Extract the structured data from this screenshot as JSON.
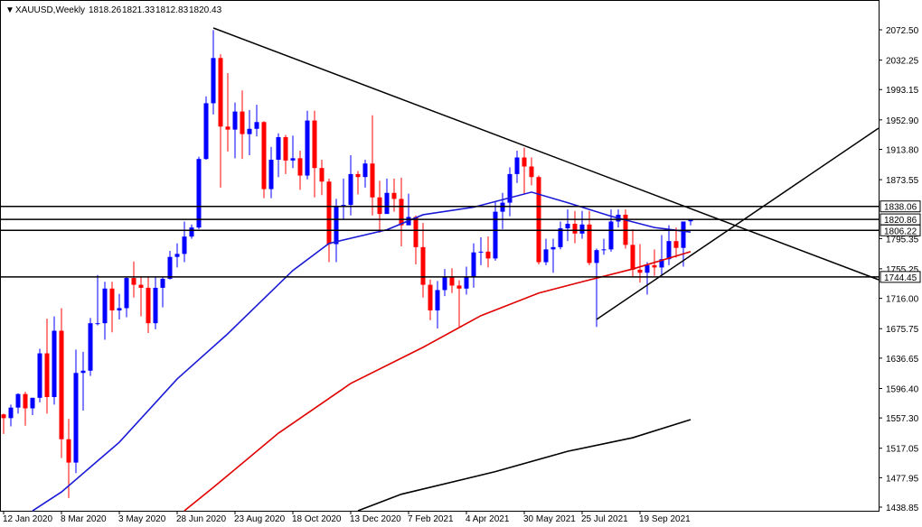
{
  "chart_data": {
    "type": "candlestick",
    "title": "XAUUSD,Weekly",
    "quote": [
      "1818.26",
      "1821.33",
      "1812.83",
      "1820.43"
    ],
    "categories": [
      "12 Jan 2020",
      null,
      null,
      null,
      null,
      null,
      null,
      null,
      "8 Mar 2020",
      null,
      null,
      null,
      null,
      null,
      null,
      null,
      "3 May 2020",
      null,
      null,
      null,
      null,
      null,
      null,
      null,
      "28 Jun 2020",
      null,
      null,
      null,
      null,
      null,
      null,
      null,
      "23 Aug 2020",
      null,
      null,
      null,
      null,
      null,
      null,
      null,
      "18 Oct 2020",
      null,
      null,
      null,
      null,
      null,
      null,
      null,
      "13 Dec 2020",
      null,
      null,
      null,
      null,
      null,
      null,
      null,
      "7 Feb 2021",
      null,
      null,
      null,
      null,
      null,
      null,
      null,
      "4 Apr 2021",
      null,
      null,
      null,
      null,
      null,
      null,
      null,
      "30 May 2021",
      null,
      null,
      null,
      null,
      null,
      null,
      null,
      "25 Jul 2021",
      null,
      null,
      null,
      null,
      null,
      null,
      null,
      "19 Sep 2021",
      null,
      null,
      null,
      null,
      null,
      null,
      null
    ],
    "open": [
      1562,
      1557,
      1571,
      1589,
      1570,
      1584,
      1643,
      1585,
      1673,
      1529,
      1498,
      1617,
      1620,
      1683,
      1683,
      1729,
      1700,
      1703,
      1743,
      1734,
      1730,
      1683,
      1730,
      1742,
      1771,
      1775,
      1798,
      1810,
      1901,
      1975,
      2035,
      1944,
      1940,
      1964,
      1934,
      1941,
      1950,
      1861,
      1900,
      1930,
      1899,
      1902,
      1879,
      1952,
      1889,
      1871,
      1788,
      1839,
      1840,
      1881,
      1877,
      1895,
      1850,
      1828,
      1856,
      1848,
      1813,
      1824,
      1784,
      1734,
      1700,
      1727,
      1745,
      1733,
      1729,
      1744,
      1777,
      1778,
      1769,
      1831,
      1843,
      1881,
      1903,
      1891,
      1877,
      1764,
      1781,
      1784,
      1809,
      1815,
      1802,
      1814,
      1763,
      1780,
      1781,
      1818,
      1827,
      1787,
      1754,
      1750,
      1760,
      1757,
      1768,
      1792,
      1783,
      1818.26
    ],
    "high": [
      1563,
      1575,
      1590,
      1592,
      1584,
      1649,
      1689,
      1692,
      1703,
      1556,
      1648,
      1645,
      1690,
      1747,
      1738,
      1738,
      1722,
      1744,
      1765,
      1745,
      1745,
      1745,
      1745,
      1779,
      1789,
      1818,
      1814,
      1904,
      1984,
      2072,
      2040,
      2015,
      1976,
      1992,
      1966,
      1973,
      1951,
      1917,
      1935,
      1933,
      1932,
      1912,
      1965,
      1965,
      1900,
      1875,
      1848,
      1875,
      1906,
      1885,
      1900,
      1959,
      1872,
      1875,
      1875,
      1876,
      1855,
      1826,
      1816,
      1741,
      1739,
      1755,
      1756,
      1740,
      1758,
      1789,
      1797,
      1798,
      1845,
      1856,
      1890,
      1912,
      1916,
      1903,
      1879,
      1795,
      1795,
      1818,
      1834,
      1832,
      1832,
      1832,
      1782,
      1795,
      1834,
      1834,
      1834,
      1808,
      1788,
      1764,
      1781,
      1800,
      1813,
      1810,
      1816,
      1821.33
    ],
    "low": [
      1536,
      1546,
      1563,
      1547,
      1561,
      1578,
      1563,
      1575,
      1504,
      1451,
      1484,
      1567,
      1613,
      1680,
      1661,
      1671,
      1688,
      1691,
      1717,
      1692,
      1670,
      1675,
      1704,
      1741,
      1757,
      1764,
      1795,
      1808,
      1900,
      1960,
      1863,
      1911,
      1902,
      1901,
      1906,
      1931,
      1849,
      1849,
      1877,
      1881,
      1889,
      1860,
      1874,
      1850,
      1853,
      1764,
      1764,
      1820,
      1826,
      1854,
      1863,
      1826,
      1803,
      1829,
      1831,
      1785,
      1817,
      1761,
      1717,
      1687,
      1676,
      1719,
      1723,
      1677,
      1721,
      1730,
      1760,
      1757,
      1766,
      1808,
      1825,
      1869,
      1855,
      1866,
      1761,
      1760,
      1750,
      1781,
      1792,
      1789,
      1795,
      1760,
      1678,
      1774,
      1778,
      1810,
      1782,
      1745,
      1737,
      1721,
      1746,
      1746,
      1760,
      1770,
      1758,
      1812.83
    ],
    "close": [
      1557,
      1571,
      1589,
      1570,
      1584,
      1643,
      1585,
      1673,
      1529,
      1498,
      1617,
      1620,
      1683,
      1683,
      1729,
      1700,
      1703,
      1743,
      1734,
      1730,
      1683,
      1730,
      1742,
      1771,
      1775,
      1798,
      1810,
      1901,
      1975,
      2035,
      1944,
      1940,
      1964,
      1934,
      1941,
      1950,
      1861,
      1900,
      1930,
      1899,
      1902,
      1879,
      1952,
      1889,
      1871,
      1788,
      1839,
      1840,
      1881,
      1877,
      1895,
      1850,
      1828,
      1856,
      1848,
      1813,
      1824,
      1784,
      1734,
      1700,
      1727,
      1745,
      1733,
      1729,
      1744,
      1777,
      1778,
      1769,
      1831,
      1843,
      1881,
      1903,
      1891,
      1877,
      1764,
      1781,
      1784,
      1809,
      1815,
      1802,
      1814,
      1763,
      1780,
      1781,
      1818,
      1827,
      1787,
      1754,
      1750,
      1760,
      1757,
      1768,
      1792,
      1783,
      1818,
      1820.43
    ],
    "up_color": "#0000ff",
    "down_color": "#ff0000",
    "indicators": [
      {
        "color": "#1a1ad6",
        "x": [
          4,
          8,
          16,
          24,
          31,
          40,
          45,
          53,
          58,
          65,
          73,
          78,
          84,
          90,
          95
        ],
        "values": [
          1434,
          1459,
          1525,
          1609,
          1669,
          1753,
          1789,
          1807,
          1827,
          1837,
          1857,
          1843,
          1825,
          1810,
          1804
        ]
      },
      {
        "color": "#e00000",
        "x": [
          25,
          29,
          38,
          48,
          58,
          66,
          74,
          80,
          87,
          95
        ],
        "values": [
          1434,
          1465,
          1537,
          1603,
          1651,
          1693,
          1723,
          1738,
          1755,
          1778
        ]
      },
      {
        "color": "#000000",
        "x": [
          49,
          55,
          68,
          78,
          87,
          95
        ],
        "values": [
          1434,
          1456,
          1486,
          1513,
          1531,
          1555
        ]
      }
    ],
    "levels": [
      1838.06,
      1820.86,
      1806.22,
      1744.45
    ],
    "ylim": [
      1434.06,
      2112.03
    ],
    "yticks": [
      {
        "value": 2072.5,
        "label": "2072.50"
      },
      2032.25,
      1993.15,
      {
        "value": 1952.9,
        "label": "1952.90"
      },
      {
        "value": 1913.8,
        "label": "1913.80"
      },
      1873.55,
      1795.35,
      1755.25,
      {
        "value": 1716,
        "label": "1716.00"
      },
      1675.75,
      1636.65,
      {
        "value": 1596.4,
        "label": "1596.40"
      },
      {
        "value": 1557.3,
        "label": "1557.30"
      },
      1517.05,
      1477.95,
      1438.85
    ]
  }
}
